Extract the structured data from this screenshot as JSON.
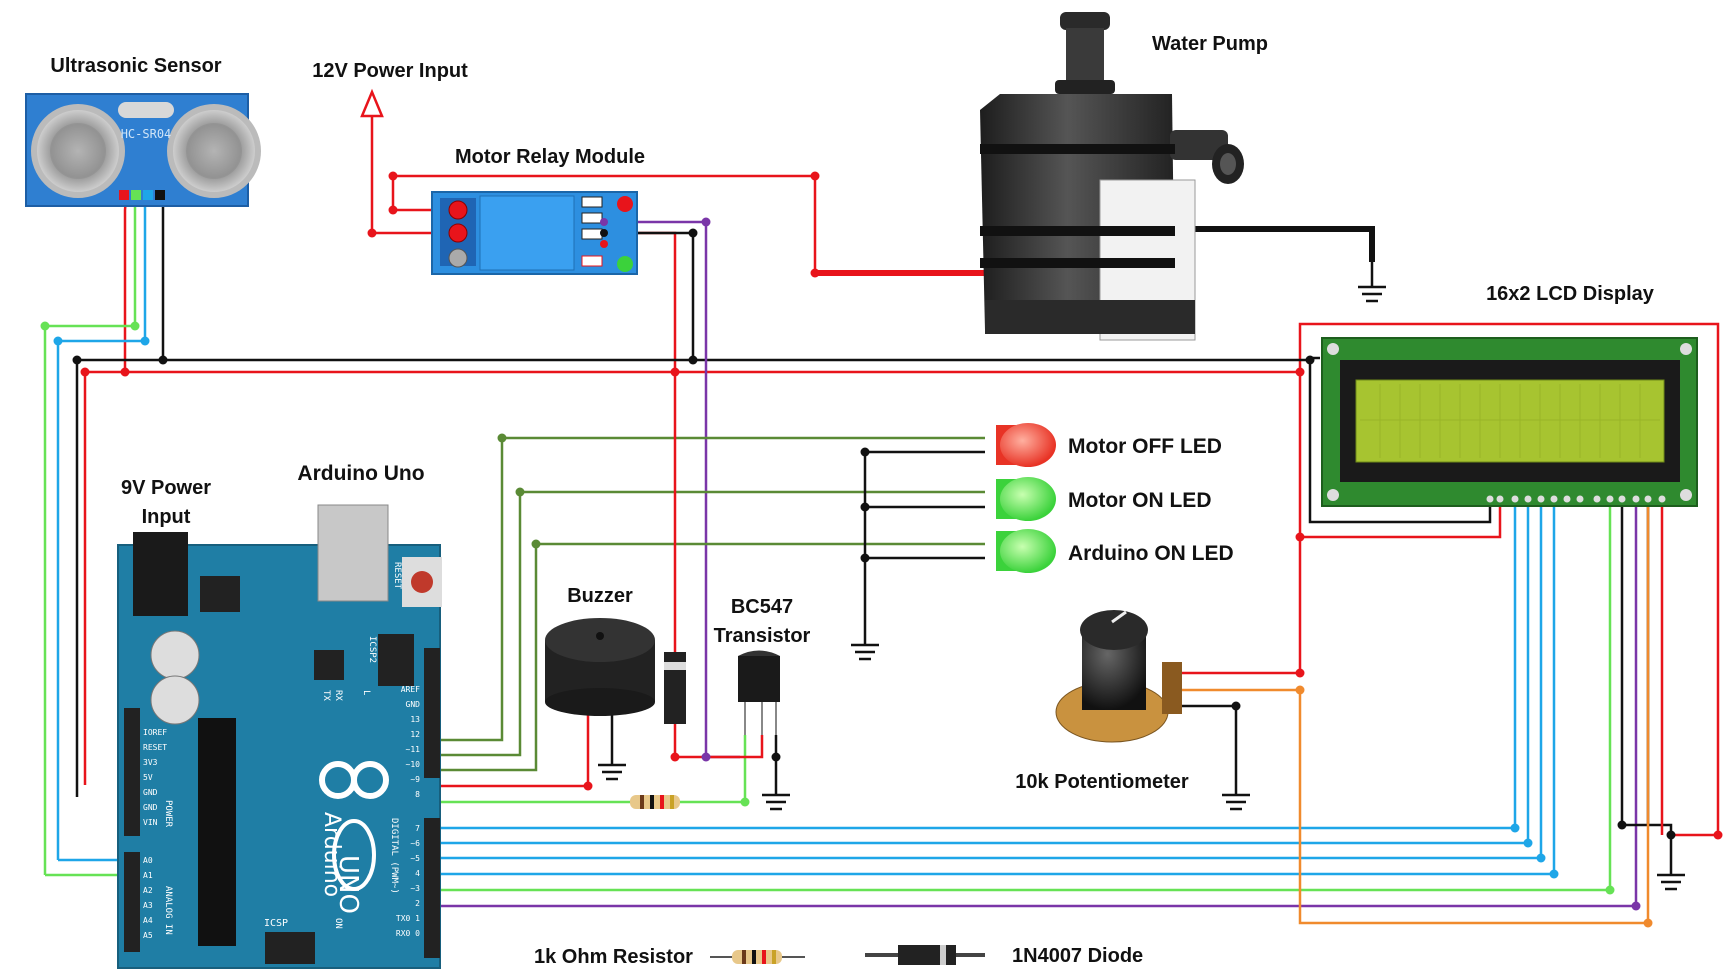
{
  "labels": {
    "ultrasonic": "Ultrasonic Sensor",
    "power12": "12V Power Input",
    "water_pump": "Water Pump",
    "relay": "Motor Relay Module",
    "lcd": "16x2 LCD Display",
    "power9_line1": "9V Power",
    "power9_line2": "Input",
    "arduino": "Arduino Uno",
    "buzzer": "Buzzer",
    "transistor_line1": "BC547",
    "transistor_line2": "Transistor",
    "led_off": "Motor OFF LED",
    "led_on": "Motor ON LED",
    "led_arduino": "Arduino ON LED",
    "pot": "10k Potentiometer",
    "resistor_legend": "1k Ohm Resistor",
    "diode_legend": "1N4007 Diode"
  },
  "board": {
    "sensor_model": "HC-SR04",
    "uno_brand": "Arduino",
    "uno_model": "UNO",
    "reset": "RESET",
    "icsp": "ICSP",
    "icsp2": "ICSP2",
    "tx": "TX",
    "rx": "RX",
    "l": "L",
    "on": "ON",
    "power_header": "POWER",
    "analog_header": "ANALOG IN",
    "digital_header": "DIGITAL (PWM~)",
    "power_pins": [
      "IOREF",
      "RESET",
      "3V3",
      "5V",
      "GND",
      "GND",
      "VIN"
    ],
    "analog_pins": [
      "A0",
      "A1",
      "A2",
      "A3",
      "A4",
      "A5"
    ],
    "digital_top": [
      "AREF",
      "GND",
      "13",
      "12",
      "~11",
      "~10",
      "~9",
      "8"
    ],
    "digital_bottom": [
      "7",
      "~6",
      "~5",
      "4",
      "~3",
      "2",
      "TX0 1",
      "RX0 0"
    ]
  },
  "colors": {
    "power": "#e8141b",
    "ground": "#111111",
    "trig": "#66e255",
    "echo": "#1ea6e8",
    "led_signal": "#5a8a35",
    "relay_signal": "#7a35a8",
    "contrast": "#f08a2d",
    "board": "#1f7ea5"
  }
}
